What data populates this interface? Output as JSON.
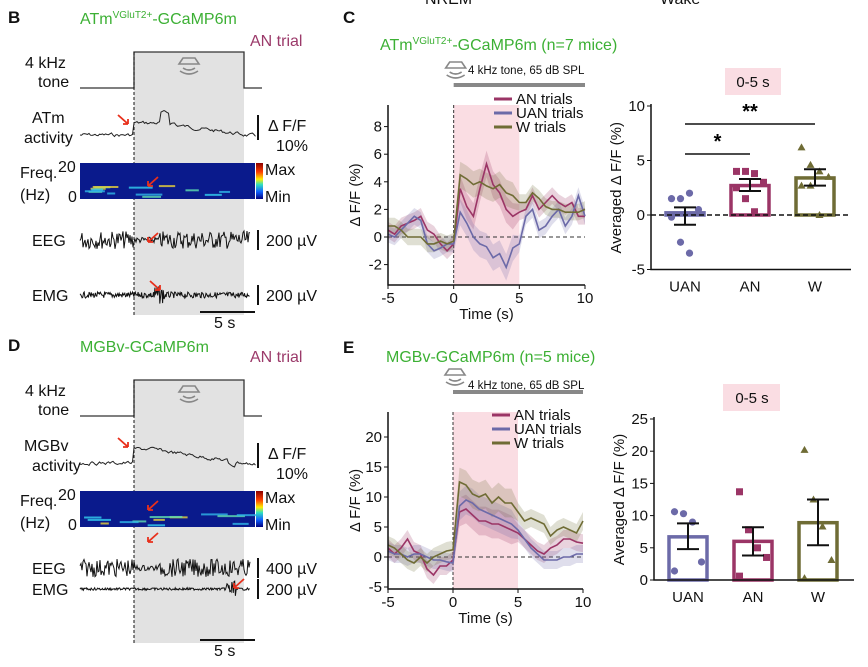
{
  "cropped_top_labels": [
    "NREM",
    "Wake"
  ],
  "colors": {
    "AN": "#9b3566",
    "UAN": "#6c6aa8",
    "W": "#6f6c35",
    "title_green": "#3cb034",
    "trial_label": "#9b3a6a",
    "tone_window": "#e2e2e2",
    "analysis_window": "#fadde3"
  },
  "panel_B": {
    "letter": "B",
    "title_main": "ATm",
    "title_sup": "VGluT2+",
    "title_rest": "-GCaMP6m",
    "trial": "AN trial",
    "tone_label": [
      "4 kHz",
      "tone"
    ],
    "activity_label": [
      "ATm",
      "activity"
    ],
    "dff_scale": [
      "Δ F/F",
      "10%"
    ],
    "freq_label": [
      "Freq.",
      "(Hz)"
    ],
    "freq_ticks": [
      "20",
      "0"
    ],
    "colorbar": [
      "Max",
      "Min"
    ],
    "eeg_label": "EEG",
    "eeg_scale": "200 µV",
    "emg_label": "EMG",
    "emg_scale": "200 µV",
    "time_scale": "5 s",
    "icon": "speaker-icon"
  },
  "panel_D": {
    "letter": "D",
    "title": "MGBv-GCaMP6m",
    "trial": "AN trial",
    "tone_label": [
      "4 kHz",
      "tone"
    ],
    "activity_label": [
      "MGBv",
      "activity"
    ],
    "dff_scale": [
      "Δ F/F",
      "10%"
    ],
    "freq_label": [
      "Freq.",
      "(Hz)"
    ],
    "freq_ticks": [
      "20",
      "0"
    ],
    "colorbar": [
      "Max",
      "Min"
    ],
    "eeg_label": "EEG",
    "eeg_scale": "400 µV",
    "emg_label": "EMG",
    "emg_scale": "200 µV",
    "time_scale": "5 s",
    "icon": "speaker-icon"
  },
  "panel_C": {
    "letter": "C",
    "title_main": "ATm",
    "title_sup": "VGluT2+",
    "title_rest": "-GCaMP6m (n=7 mice)",
    "tone_text": "4 kHz tone, 65 dB SPL",
    "window_label": "0-5 s",
    "sig_1": "*",
    "sig_2": "**"
  },
  "panel_E": {
    "letter": "E",
    "title": "MGBv-GCaMP6m (n=5 mice)",
    "tone_text": "4 kHz tone, 65 dB SPL",
    "window_label": "0-5 s"
  },
  "chart_data": [
    {
      "id": "C-trace",
      "type": "line",
      "xlabel": "Time (s)",
      "ylabel": "Δ F/F (%)",
      "xlim": [
        -5,
        10
      ],
      "ylim": [
        -3.3,
        9.5
      ],
      "xticks": [
        "-5",
        "0",
        "5",
        "10"
      ],
      "yticks": [
        "-2",
        "0",
        "2",
        "4",
        "6",
        "8"
      ],
      "shaded_window": [
        0,
        5
      ],
      "legend": "top-right",
      "x": [
        -5,
        -4.5,
        -4,
        -3.5,
        -3,
        -2.5,
        -2,
        -1.5,
        -1,
        -0.5,
        0,
        0.5,
        1,
        1.5,
        2,
        2.5,
        3,
        3.5,
        4,
        4.5,
        5,
        5.5,
        6,
        6.5,
        7,
        7.5,
        8,
        8.5,
        9,
        9.5,
        10
      ],
      "series": [
        {
          "name": "AN trials",
          "values": [
            0.5,
            0.2,
            0.8,
            1.0,
            1.2,
            1.5,
            0.5,
            0.2,
            -0.5,
            -1.0,
            -0.5,
            3.5,
            2.2,
            1.5,
            3.5,
            5.3,
            3.8,
            3.2,
            2.0,
            1.5,
            1.8,
            2.0,
            3.0,
            2.0,
            2.5,
            3.0,
            2.5,
            2.2,
            2.5,
            1.5,
            1.5
          ]
        },
        {
          "name": "UAN trials",
          "values": [
            0.2,
            0,
            0.5,
            1.0,
            1.5,
            1.2,
            -0.5,
            -1.0,
            -0.8,
            -0.5,
            -0.5,
            1.8,
            1.0,
            0,
            -0.5,
            -0.7,
            -1.5,
            -1.2,
            -2.2,
            -0.8,
            -0.5,
            1.5,
            2.0,
            0.5,
            0.8,
            1.5,
            2.0,
            0.8,
            1.5,
            3.0,
            1.5
          ]
        },
        {
          "name": "W trials",
          "values": [
            0.8,
            0.8,
            0.5,
            0,
            0,
            0,
            -0.5,
            -0.5,
            -0.3,
            -0.5,
            -0.3,
            4.5,
            4.2,
            3.8,
            4.0,
            3.7,
            3.5,
            3.8,
            3.2,
            3.0,
            2.5,
            2.5,
            3.2,
            2.8,
            2.2,
            2.0,
            2.0,
            1.8,
            1.8,
            1.8,
            2.0
          ]
        }
      ]
    },
    {
      "id": "C-bar",
      "type": "bar",
      "ylabel": "Averaged Δ F/F (%)",
      "ylim": [
        -5,
        10
      ],
      "yticks": [
        "-5",
        "0",
        "5",
        "10"
      ],
      "categories": [
        "UAN",
        "AN",
        "W"
      ],
      "values": [
        0.2,
        2.7,
        3.4
      ],
      "sem_low": [
        -0.9,
        2.2,
        2.7
      ],
      "sem_high": [
        0.7,
        3.3,
        4.2
      ],
      "points": [
        [
          1.5,
          1.5,
          2.0,
          0.5,
          -0.2,
          -2.5,
          -3.5
        ],
        [
          4.0,
          4.0,
          3.8,
          3.0,
          2.5,
          1.5,
          0.3
        ],
        [
          6.2,
          4.6,
          4.0,
          3.5,
          2.7,
          2.7,
          0.0
        ]
      ],
      "significance": [
        {
          "from": "UAN",
          "to": "AN",
          "label": "*"
        },
        {
          "from": "UAN",
          "to": "W",
          "label": "**"
        }
      ]
    },
    {
      "id": "E-trace",
      "type": "line",
      "xlabel": "Time (s)",
      "ylabel": "Δ F/F (%)",
      "xlim": [
        -5,
        10
      ],
      "ylim": [
        -5.5,
        24
      ],
      "xticks": [
        "-5",
        "0",
        "5",
        "10"
      ],
      "yticks": [
        "-5",
        "0",
        "5",
        "10",
        "15",
        "20"
      ],
      "shaded_window": [
        0,
        5
      ],
      "legend": "top-right",
      "x": [
        -5,
        -4.5,
        -4,
        -3.5,
        -3,
        -2.5,
        -2,
        -1.5,
        -1,
        -0.5,
        0,
        0.5,
        1,
        1.5,
        2,
        2.5,
        3,
        3.5,
        4,
        4.5,
        5,
        5.5,
        6,
        6.5,
        7,
        7.5,
        8,
        8.5,
        9,
        9.5,
        10
      ],
      "series": [
        {
          "name": "AN trials",
          "values": [
            1.5,
            0.5,
            1.5,
            3.0,
            1.0,
            0.5,
            -2,
            -3,
            -1.5,
            -1.5,
            -0.5,
            7.5,
            8.0,
            7.0,
            6.0,
            6.0,
            5.5,
            5.5,
            5.0,
            4.5,
            4.0,
            3.0,
            2.0,
            1.0,
            0.5,
            1.5,
            2.0,
            3.0,
            3.0,
            2.5,
            2.3
          ]
        },
        {
          "name": "UAN trials",
          "values": [
            1.0,
            0.5,
            0.5,
            0,
            0.5,
            0.5,
            0,
            -0.5,
            -0.5,
            -0.8,
            -1,
            8.5,
            9.5,
            9.0,
            8.0,
            7.5,
            7.0,
            6.5,
            6.0,
            5.5,
            4.5,
            3.0,
            1.5,
            0.5,
            -0.5,
            -0.5,
            -0.5,
            0,
            0,
            0.5,
            0.5
          ]
        },
        {
          "name": "W trials",
          "values": [
            2.0,
            1.5,
            0.5,
            -0.5,
            -1.0,
            0,
            -1,
            0,
            0.5,
            1,
            1.2,
            12.5,
            12.0,
            10.5,
            10.0,
            10.5,
            9.0,
            10.0,
            9.0,
            9.0,
            7.5,
            6.0,
            6.5,
            6.0,
            5.5,
            3.5,
            4.5,
            5.0,
            4.5,
            4.0,
            6.0
          ]
        }
      ]
    },
    {
      "id": "E-bar",
      "type": "bar",
      "ylabel": "Averaged Δ F/F (%)",
      "ylim": [
        0,
        25
      ],
      "yticks": [
        "0",
        "5",
        "10",
        "15",
        "20",
        "25"
      ],
      "categories": [
        "UAN",
        "AN",
        "W"
      ],
      "values": [
        6.7,
        6.0,
        8.9
      ],
      "sem_low": [
        4.8,
        3.8,
        5.4
      ],
      "sem_high": [
        8.8,
        8.2,
        12.5
      ],
      "points": [
        [
          10.6,
          10.3,
          9.0,
          2.8,
          1.4
        ],
        [
          13.7,
          7.8,
          5.0,
          3.5,
          0.6
        ],
        [
          20.2,
          12.5,
          8.3,
          3.1,
          0.3
        ]
      ]
    }
  ]
}
